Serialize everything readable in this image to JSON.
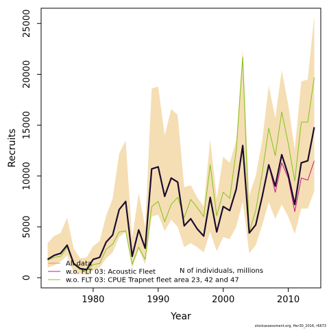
{
  "chart_data": {
    "type": "line",
    "xlabel": "Year",
    "ylabel": "Recruits",
    "xlim": [
      1972,
      2015
    ],
    "ylim": [
      -1000,
      26500
    ],
    "xticks": [
      1980,
      1990,
      2000,
      2010
    ],
    "yticks": [
      0,
      5000,
      10000,
      15000,
      20000,
      25000
    ],
    "grid": false,
    "legend_position": "bottom-left",
    "annotation": "N of individuals, millions",
    "footnote": "stockassessment.org, Her30_2016, r6673",
    "x": [
      1973,
      1974,
      1975,
      1976,
      1977,
      1978,
      1979,
      1980,
      1981,
      1982,
      1983,
      1984,
      1985,
      1986,
      1987,
      1988,
      1989,
      1990,
      1991,
      1992,
      1993,
      1994,
      1995,
      1996,
      1997,
      1998,
      1999,
      2000,
      2001,
      2002,
      2003,
      2004,
      2005,
      2006,
      2007,
      2008,
      2009,
      2010,
      2011,
      2012,
      2013,
      2014
    ],
    "band": {
      "color": "#f5deb3",
      "lower": [
        1000,
        1200,
        1600,
        2200,
        500,
        400,
        300,
        700,
        1000,
        1900,
        2500,
        4000,
        4500,
        1000,
        2800,
        1300,
        6000,
        6200,
        4600,
        5700,
        5000,
        3000,
        3400,
        3000,
        2500,
        4500,
        2600,
        4000,
        3800,
        5000,
        7500,
        2400,
        3200,
        5200,
        7400,
        5800,
        7200,
        6000,
        4300,
        6800,
        6800,
        8500
      ],
      "upper": [
        3400,
        4100,
        4400,
        5900,
        2900,
        1900,
        2000,
        3100,
        3600,
        6100,
        7800,
        12200,
        13500,
        3900,
        8300,
        5000,
        18600,
        18800,
        14000,
        16600,
        16000,
        8900,
        9100,
        7900,
        7000,
        13600,
        7800,
        11900,
        11300,
        13500,
        22500,
        8100,
        10000,
        13500,
        18900,
        15700,
        20400,
        17000,
        12600,
        19300,
        19500,
        25800
      ]
    },
    "series": [
      {
        "name": "All data",
        "color": "#fa8072",
        "width": 1,
        "values": [
          1800,
          2200,
          2400,
          3200,
          1400,
          900,
          800,
          1800,
          2000,
          3500,
          4200,
          6700,
          7500,
          2100,
          4700,
          2900,
          10700,
          10900,
          8000,
          9800,
          9400,
          5100,
          5800,
          4800,
          4100,
          7900,
          4500,
          7000,
          6600,
          8700,
          13000,
          4400,
          5200,
          8000,
          11100,
          9000,
          12100,
          10100,
          7200,
          11300,
          11500,
          14800
        ]
      },
      {
        "name": "w.o. FLT 03: Acoustic Fleet",
        "color": "#c71585",
        "width": 1,
        "values": [
          1800,
          2200,
          2400,
          3200,
          1400,
          900,
          800,
          1800,
          2000,
          3500,
          4200,
          6700,
          7500,
          2100,
          4700,
          2900,
          10700,
          10900,
          8000,
          9800,
          9400,
          5100,
          5800,
          4800,
          4100,
          7900,
          4500,
          7000,
          6600,
          8700,
          13000,
          4400,
          5200,
          8000,
          11100,
          8400,
          11300,
          9800,
          6500,
          9800,
          9600,
          11500
        ]
      },
      {
        "name": "w.o. FLT 03: CPUE Trapnet fleet area 23, 42 and 47",
        "color": "#7fc31c",
        "width": 1,
        "values": [
          1700,
          2000,
          2100,
          3000,
          1300,
          800,
          700,
          1300,
          1400,
          2800,
          3300,
          4500,
          4600,
          1300,
          3000,
          1800,
          7000,
          7500,
          5500,
          7200,
          7900,
          5900,
          7700,
          6900,
          6000,
          11100,
          6100,
          8400,
          7800,
          12500,
          21700,
          4500,
          6600,
          10300,
          14700,
          12000,
          16300,
          13200,
          9500,
          15300,
          15300,
          19700
        ]
      },
      {
        "name": "",
        "color": "#1a0b2e",
        "width": 2.2,
        "values": [
          1800,
          2200,
          2400,
          3200,
          1400,
          900,
          800,
          1800,
          2000,
          3500,
          4200,
          6700,
          7500,
          2100,
          4700,
          2900,
          10700,
          10900,
          8000,
          9800,
          9400,
          5100,
          5800,
          4800,
          4100,
          7900,
          4500,
          7000,
          6600,
          8700,
          13000,
          4400,
          5200,
          8000,
          11100,
          9000,
          12100,
          10100,
          7200,
          11300,
          11500,
          14800
        ]
      }
    ]
  }
}
